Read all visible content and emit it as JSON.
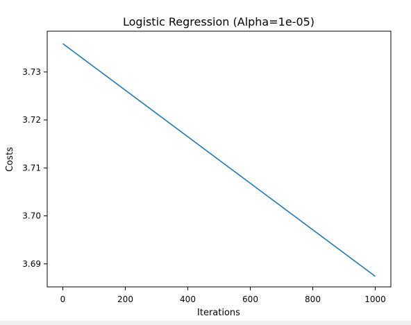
{
  "chart_data": {
    "type": "line",
    "title": "Logistic Regression (Alpha=1e-05)",
    "xlabel": "Iterations",
    "ylabel": "Costs",
    "xlim": [
      -50,
      1050
    ],
    "ylim": [
      3.6852,
      3.7385
    ],
    "x_ticks": [
      0,
      200,
      400,
      600,
      800,
      1000
    ],
    "y_ticks": [
      3.69,
      3.7,
      3.71,
      3.72,
      3.73
    ],
    "y_tick_labels": [
      "3.69",
      "3.70",
      "3.71",
      "3.72",
      "3.73"
    ],
    "grid": false,
    "series": [
      {
        "color": "#1f77b4",
        "x": [
          0,
          1000
        ],
        "y": [
          3.7359,
          3.6874
        ]
      }
    ]
  }
}
